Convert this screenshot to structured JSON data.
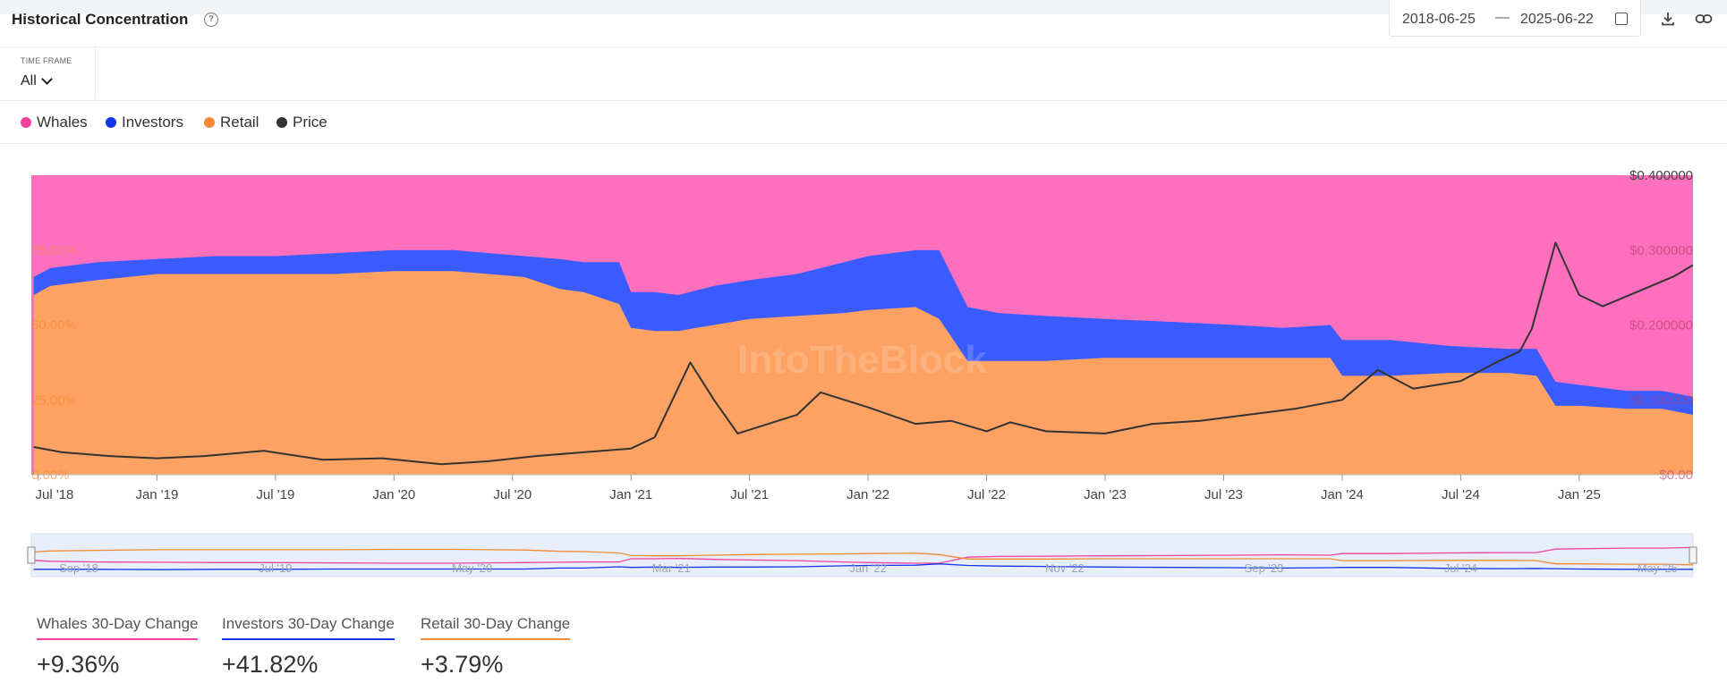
{
  "header": {
    "title": "Historical Concentration",
    "help_icon": "help-circle-icon",
    "date_start": "2018-06-25",
    "date_separator": "—",
    "date_end": "2025-06-22",
    "calendar_icon": "calendar-icon",
    "download_icon": "download-icon",
    "link_icon": "link-icon"
  },
  "timeframe": {
    "label": "TIME FRAME",
    "value": "All"
  },
  "legend": [
    {
      "name": "Whales",
      "color": "#f0449e"
    },
    {
      "name": "Investors",
      "color": "#1235e8"
    },
    {
      "name": "Retail",
      "color": "#f28a33"
    },
    {
      "name": "Price",
      "color": "#333333"
    }
  ],
  "chart_data": {
    "type": "area",
    "stacked": "percent",
    "watermark": "IntoTheBlock",
    "x_ticks": [
      "Jul '18",
      "Jan '19",
      "Jul '19",
      "Jan '20",
      "Jul '20",
      "Jan '21",
      "Jul '21",
      "Jan '22",
      "Jul '22",
      "Jan '23",
      "Jul '23",
      "Jan '24",
      "Jul '24",
      "Jan '25"
    ],
    "y_left_ticks": [
      "0.00%",
      "25.00%",
      "50.00%",
      "75.00%"
    ],
    "y_right_ticks": [
      "$0.00",
      "$0.100000",
      "$0.200000",
      "$0.300000",
      "$0.400000"
    ],
    "ylim_left": [
      0,
      100
    ],
    "ylim_right": [
      0,
      0.4
    ],
    "x": [
      2018.48,
      2018.55,
      2018.75,
      2019.0,
      2019.25,
      2019.5,
      2019.75,
      2020.0,
      2020.25,
      2020.4,
      2020.55,
      2020.7,
      2020.8,
      2020.95,
      2021.0,
      2021.1,
      2021.2,
      2021.35,
      2021.5,
      2021.7,
      2021.9,
      2022.0,
      2022.2,
      2022.3,
      2022.42,
      2022.55,
      2022.75,
      2023.0,
      2023.3,
      2023.55,
      2023.75,
      2023.95,
      2024.0,
      2024.2,
      2024.45,
      2024.7,
      2024.82,
      2024.9,
      2025.0,
      2025.2,
      2025.35,
      2025.48
    ],
    "series": [
      {
        "name": "Retail",
        "color": "#f28a33",
        "values": [
          60,
          63,
          65,
          67,
          67,
          67,
          67,
          68,
          68,
          67,
          66,
          62,
          61,
          57,
          49,
          48,
          48,
          50,
          52,
          53,
          54,
          55,
          56,
          52,
          38,
          38,
          38,
          39,
          39,
          39,
          39,
          39,
          33,
          33,
          34,
          34,
          33,
          23,
          23,
          22,
          22,
          20
        ]
      },
      {
        "name": "Investors",
        "color": "#1235e8",
        "values": [
          6,
          6,
          6,
          5,
          6,
          6,
          7,
          7,
          7,
          7,
          7,
          10,
          10,
          14,
          12,
          13,
          12,
          13,
          13,
          14,
          17,
          18,
          19,
          23,
          18,
          16,
          15,
          13,
          12,
          11,
          10,
          11,
          12,
          12,
          9,
          8,
          9,
          8,
          7,
          6,
          6,
          6
        ]
      },
      {
        "name": "Whales",
        "color": "#f0449e",
        "values": [
          34,
          31,
          29,
          28,
          27,
          27,
          26,
          25,
          25,
          26,
          27,
          28,
          29,
          29,
          39,
          39,
          40,
          37,
          35,
          33,
          29,
          27,
          25,
          25,
          44,
          46,
          47,
          48,
          49,
          50,
          51,
          50,
          55,
          55,
          57,
          58,
          58,
          69,
          70,
          72,
          72,
          74
        ]
      },
      {
        "name": "Price",
        "color": "#333333",
        "x": [
          2018.48,
          2018.6,
          2018.8,
          2019.0,
          2019.2,
          2019.45,
          2019.7,
          2019.95,
          2020.2,
          2020.4,
          2020.6,
          2020.8,
          2021.0,
          2021.1,
          2021.25,
          2021.35,
          2021.45,
          2021.55,
          2021.7,
          2021.8,
          2022.0,
          2022.2,
          2022.35,
          2022.5,
          2022.6,
          2022.75,
          2023.0,
          2023.2,
          2023.4,
          2023.6,
          2023.8,
          2024.0,
          2024.15,
          2024.3,
          2024.5,
          2024.65,
          2024.75,
          2024.8,
          2024.9,
          2025.0,
          2025.1,
          2025.25,
          2025.4,
          2025.48
        ],
        "values": [
          0.037,
          0.03,
          0.025,
          0.022,
          0.025,
          0.032,
          0.02,
          0.022,
          0.014,
          0.018,
          0.025,
          0.03,
          0.035,
          0.05,
          0.15,
          0.1,
          0.055,
          0.065,
          0.08,
          0.11,
          0.09,
          0.068,
          0.072,
          0.058,
          0.07,
          0.058,
          0.055,
          0.068,
          0.072,
          0.08,
          0.088,
          0.1,
          0.14,
          0.115,
          0.125,
          0.15,
          0.165,
          0.195,
          0.31,
          0.24,
          0.225,
          0.245,
          0.265,
          0.28
        ]
      }
    ],
    "navigator_ticks": [
      "Sep '18",
      "Jul '19",
      "May '20",
      "Mar '21",
      "Jan '22",
      "Nov '22",
      "Sep '23",
      "Jul '24",
      "May '25"
    ]
  },
  "stats": [
    {
      "label": "Whales 30-Day Change",
      "value": "+9.36%",
      "color": "#f0449e"
    },
    {
      "label": "Investors 30-Day Change",
      "value": "+41.82%",
      "color": "#1235e8"
    },
    {
      "label": "Retail 30-Day Change",
      "value": "+3.79%",
      "color": "#f28a33"
    }
  ]
}
